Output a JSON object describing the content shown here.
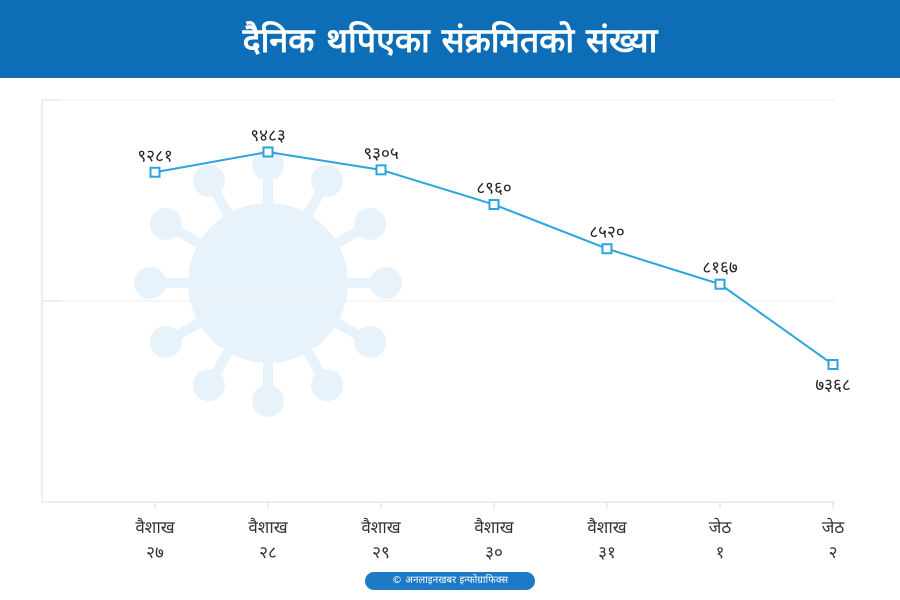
{
  "title": "दैनिक थपिएका संक्रमितको संख्या",
  "credit": "© अनलाइनखबर इन्फोग्राफिक्स",
  "colors": {
    "header": "#0d6db7",
    "line": "#2aa5dd",
    "axis": "#dddddd",
    "watermark": "#e8f2fa"
  },
  "chart_data": {
    "type": "line",
    "title": "दैनिक थपिएका संक्रमितको संख्या",
    "categories": [
      "वैशाख २७",
      "वैशाख २८",
      "वैशाख २९",
      "वैशाख ३०",
      "वैशाख ३१",
      "जेठ १",
      "जेठ २"
    ],
    "category_lines": [
      [
        "वैशाख",
        "२७"
      ],
      [
        "वैशाख",
        "२८"
      ],
      [
        "वैशाख",
        "२९"
      ],
      [
        "वैशाख",
        "३०"
      ],
      [
        "वैशाख",
        "३१"
      ],
      [
        "जेठ",
        "१"
      ],
      [
        "जेठ",
        "२"
      ]
    ],
    "series": [
      {
        "values": [
          9281,
          9483,
          9305,
          8960,
          8520,
          8167,
          7368
        ],
        "labels": [
          "९२८१",
          "९४८३",
          "९३०५",
          "८९६०",
          "८५२०",
          "८१६७",
          "७३६८"
        ]
      }
    ],
    "ylim": [
      6000,
      10000
    ],
    "grid": true,
    "legend": "none",
    "background_icon": "virus-icon"
  }
}
